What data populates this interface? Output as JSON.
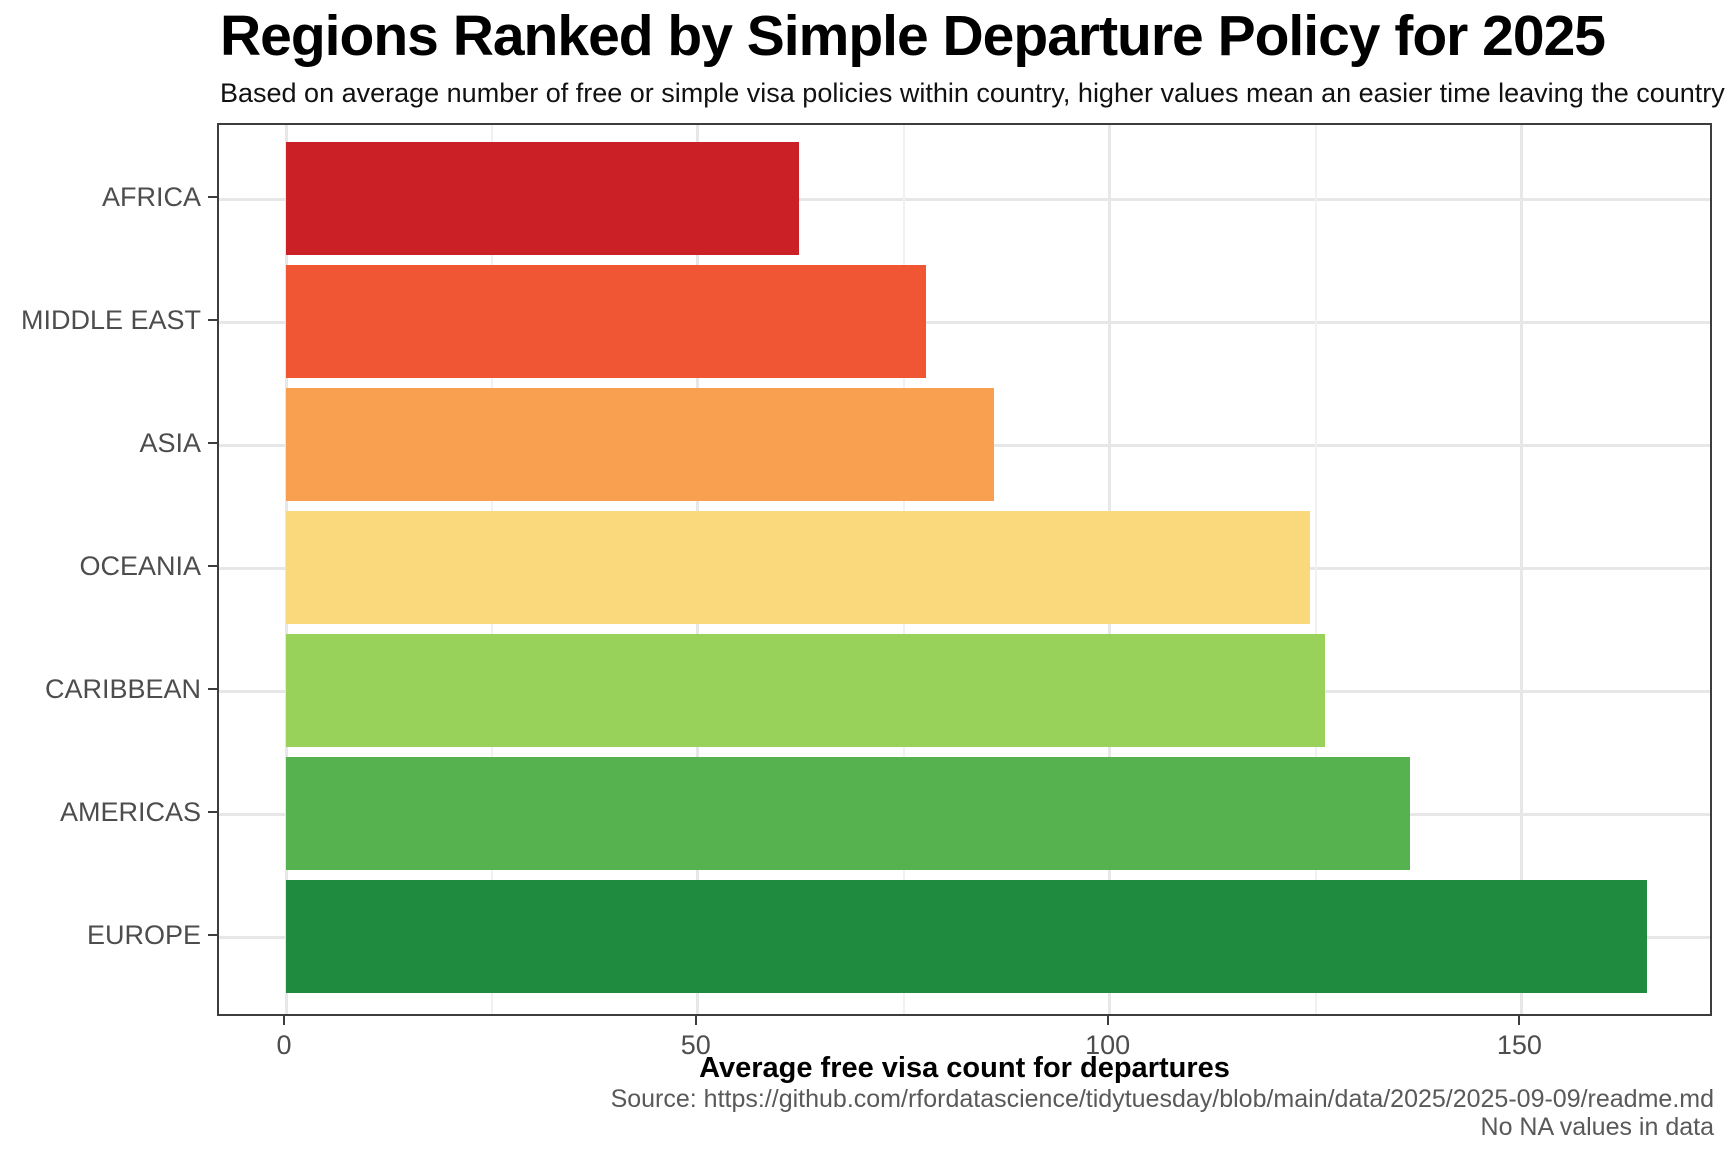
{
  "title": "Regions Ranked by Simple Departure Policy for 2025",
  "subtitle": "Based on average number of free or simple visa policies within country, higher values mean an easier time leaving the country",
  "chart_data": {
    "type": "bar",
    "orientation": "horizontal",
    "title": "Regions Ranked by Simple Departure Policy for 2025",
    "subtitle": "Based on average number of free or simple visa policies within country, higher values mean an easier time leaving the country",
    "categories": [
      "AFRICA",
      "MIDDLE EAST",
      "ASIA",
      "OCEANIA",
      "CARIBBEAN",
      "AMERICAS",
      "EUROPE"
    ],
    "values": [
      62.3,
      77.7,
      86.0,
      124.3,
      126.2,
      136.5,
      165.3
    ],
    "bar_colors": [
      "#cb2026",
      "#f05634",
      "#f99f50",
      "#fad97c",
      "#99d25b",
      "#55b24f",
      "#1e8b3e"
    ],
    "xlabel": "Average free visa count for departures",
    "ylabel": "",
    "x_ticks": [
      0,
      50,
      100,
      150
    ],
    "x_minor_ticks": [
      25,
      75,
      125
    ],
    "xlim": [
      -8.1,
      173.4
    ],
    "grid": "vertical major+minor, horizontal major at category centers",
    "legend": "none"
  },
  "caption": {
    "source_line": "Source: https://github.com/rfordatascience/tidytuesday/blob/main/data/2025/2025-09-09/readme.md",
    "note_line": "No NA values in data"
  },
  "colors": {
    "panel_border": "#3d3d3d",
    "grid_major": "#e7e7e7",
    "grid_minor": "#f1f1f1",
    "axis_tick": "#3d3d3d",
    "tick_label": "#4d4d4d",
    "caption_text": "#595959",
    "background": "#ffffff"
  }
}
